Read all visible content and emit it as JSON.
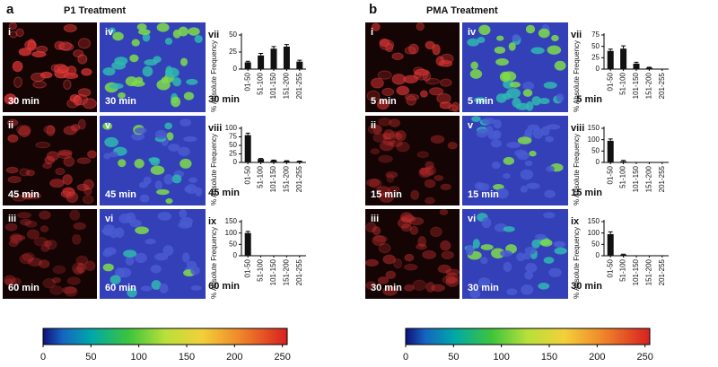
{
  "panels": [
    {
      "letter": "a",
      "title": "P1 Treatment",
      "images": [
        {
          "numeral": "i",
          "time": "30 min"
        },
        {
          "numeral": "ii",
          "time": "45 min"
        },
        {
          "numeral": "iii",
          "time": "60 min"
        },
        {
          "numeral": "iv",
          "time": "30 min"
        },
        {
          "numeral": "v",
          "time": "45 min"
        },
        {
          "numeral": "vi",
          "time": "60 min"
        }
      ],
      "colorbar": {
        "xlim": [
          0,
          255
        ],
        "xticks": [
          0,
          50,
          100,
          150,
          200,
          250
        ]
      }
    },
    {
      "letter": "b",
      "title": "PMA Treatment",
      "images": [
        {
          "numeral": "i",
          "time": "5 min"
        },
        {
          "numeral": "ii",
          "time": "15 min"
        },
        {
          "numeral": "iii",
          "time": "30 min"
        },
        {
          "numeral": "iv",
          "time": "5 min"
        },
        {
          "numeral": "v",
          "time": "15 min"
        },
        {
          "numeral": "vi",
          "time": "30 min"
        }
      ],
      "colorbar": {
        "xlim": [
          0,
          255
        ],
        "xticks": [
          0,
          50,
          100,
          150,
          200,
          250
        ]
      }
    }
  ],
  "chart_data": [
    {
      "type": "bar",
      "label": "vii",
      "time_label": "30 min",
      "y_label": "% Absolute Frequency",
      "color": "#111111",
      "categories": [
        "01-50",
        "51-100",
        "101-150",
        "151-200",
        "201-255"
      ],
      "values": [
        10,
        20,
        30,
        33,
        11
      ],
      "errors": [
        1.5,
        3,
        3,
        3,
        2
      ],
      "ylim": [
        0,
        50
      ],
      "yticks": [
        0,
        25,
        50
      ]
    },
    {
      "type": "bar",
      "label": "viii",
      "time_label": "45 min",
      "y_label": "% Absolute Frequency",
      "color": "#111111",
      "categories": [
        "01-50",
        "51-100",
        "101-150",
        "151-200",
        "201-255"
      ],
      "values": [
        80,
        10,
        6,
        4,
        3
      ],
      "errors": [
        6,
        1.5,
        1,
        1,
        1
      ],
      "ylim": [
        0,
        100
      ],
      "yticks": [
        0,
        25,
        50,
        75,
        100
      ]
    },
    {
      "type": "bar",
      "label": "ix",
      "time_label": "60 min",
      "y_label": "% Absolute Frequency",
      "color": "#111111",
      "categories": [
        "01-50",
        "51-100",
        "101-150",
        "151-200",
        "201-255"
      ],
      "values": [
        100,
        0,
        0,
        0,
        0
      ],
      "errors": [
        7,
        0,
        0,
        0,
        0
      ],
      "ylim": [
        0,
        150
      ],
      "yticks": [
        0,
        50,
        100,
        150
      ]
    },
    {
      "type": "bar",
      "label": "vii",
      "time_label": "5 min",
      "y_label": "% Absolute Frequency",
      "color": "#111111",
      "categories": [
        "01-50",
        "51-100",
        "101-150",
        "151-200",
        "201-255"
      ],
      "values": [
        40,
        45,
        12,
        3,
        0
      ],
      "errors": [
        4,
        6,
        3,
        1,
        0
      ],
      "ylim": [
        0,
        75
      ],
      "yticks": [
        0,
        25,
        50,
        75
      ]
    },
    {
      "type": "bar",
      "label": "viii",
      "time_label": "15 min",
      "y_label": "% Absolute Frequency",
      "color": "#111111",
      "categories": [
        "01-50",
        "51-100",
        "101-150",
        "151-200",
        "201-255"
      ],
      "values": [
        95,
        5,
        0,
        0,
        0
      ],
      "errors": [
        8,
        4,
        0,
        0,
        0
      ],
      "ylim": [
        0,
        150
      ],
      "yticks": [
        0,
        50,
        100,
        150
      ]
    },
    {
      "type": "bar",
      "label": "ix",
      "time_label": "30 min",
      "y_label": "% Absolute Frequency",
      "color": "#111111",
      "categories": [
        "01-50",
        "51-100",
        "101-150",
        "151-200",
        "201-255"
      ],
      "values": [
        95,
        5,
        0,
        0,
        0
      ],
      "errors": [
        10,
        2,
        0,
        0,
        0
      ],
      "ylim": [
        0,
        150
      ],
      "yticks": [
        0,
        50,
        100,
        150
      ]
    }
  ]
}
